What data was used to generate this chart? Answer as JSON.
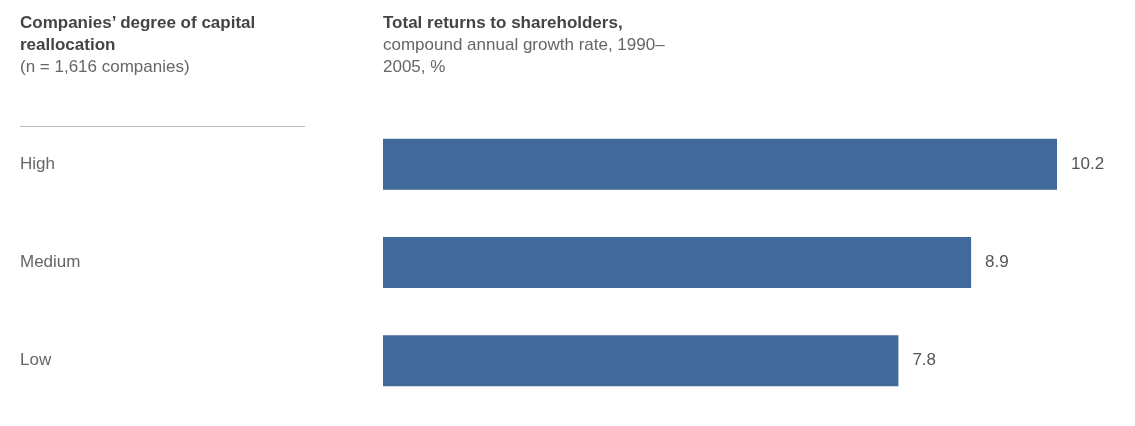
{
  "chart_data": {
    "type": "bar",
    "orientation": "horizontal",
    "title": "Total returns to shareholders,",
    "subtitle": "compound annual growth rate, 1990–2005, %",
    "ylabel": "Companies’ degree of capital reallocation",
    "annotations": [
      "(n = 1,616 companies)"
    ],
    "categories": [
      "High",
      "Medium",
      "Low"
    ],
    "series": [
      {
        "color": "#41699a",
        "values": [
          10.2,
          8.9,
          7.8
        ]
      }
    ],
    "data_labels": true,
    "grid": false,
    "legend": false
  }
}
